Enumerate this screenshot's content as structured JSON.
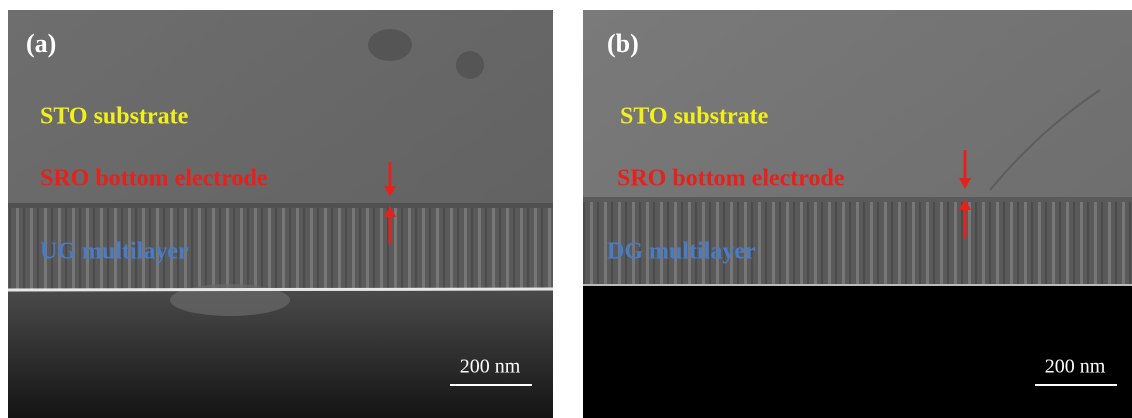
{
  "panels": [
    {
      "label": "(a)",
      "substrate": "STO substrate",
      "electrode": "SRO bottom electrode",
      "multilayer": "UG multilayer",
      "scale_bar": "200 nm"
    },
    {
      "label": "(b)",
      "substrate": "STO substrate",
      "electrode": "SRO bottom electrode",
      "multilayer": "DG multilayer",
      "scale_bar": "200 nm"
    }
  ]
}
